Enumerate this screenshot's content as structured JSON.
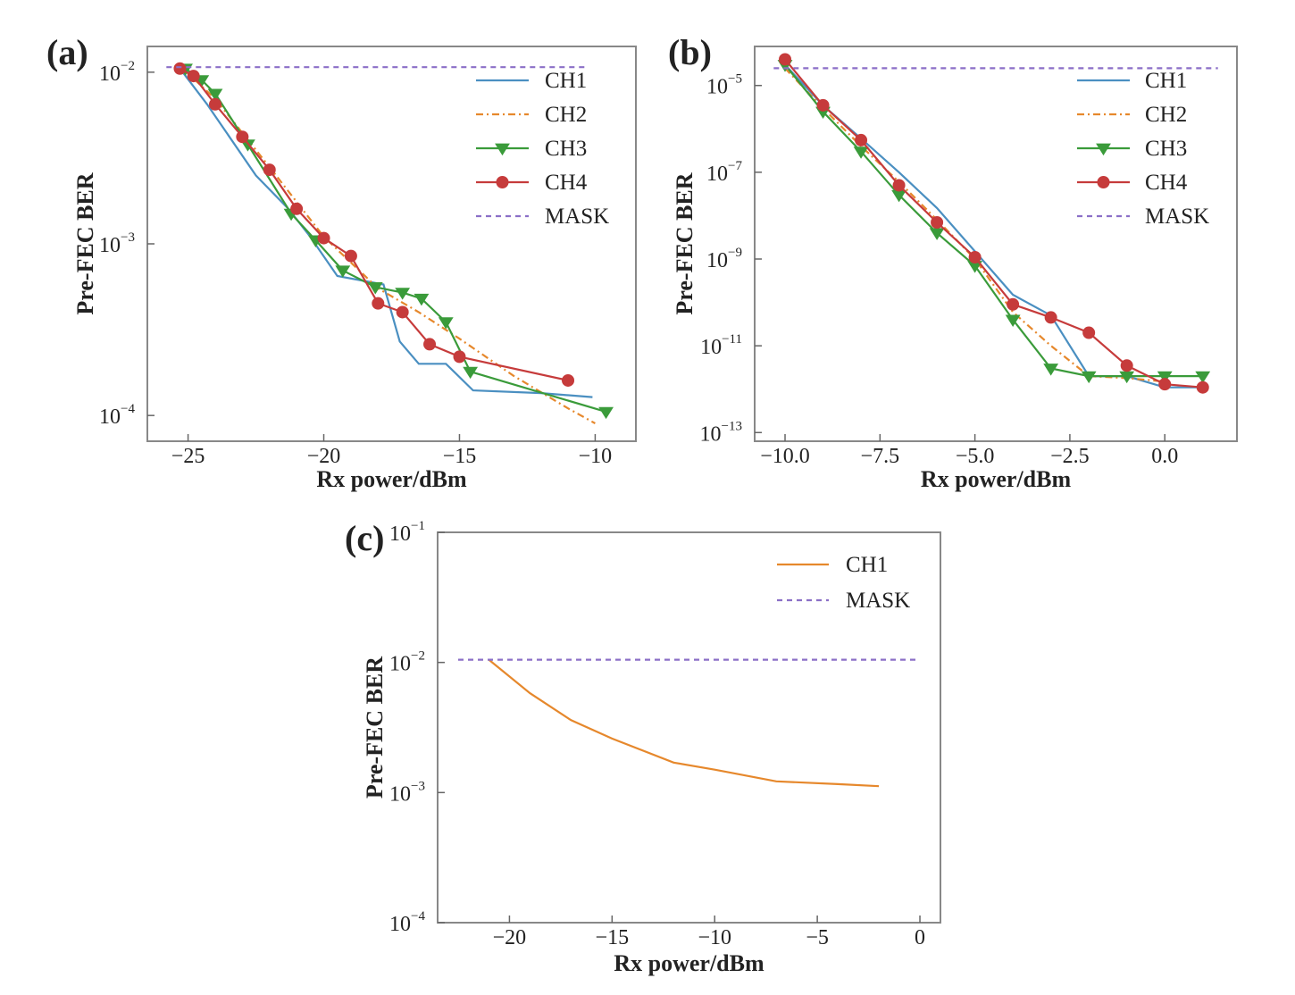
{
  "chart_data": [
    {
      "panel_label": "(a)",
      "type": "line",
      "xlabel": "Rx power/dBm",
      "ylabel": "Pre-FEC BER",
      "xlim": [
        -26.5,
        -8.5
      ],
      "ylim_log10": [
        -4.15,
        -1.85
      ],
      "y_scale": "log",
      "xticks": [
        -25,
        -20,
        -15,
        -10
      ],
      "xtick_labels": [
        "−25",
        "−20",
        "−15",
        "−10"
      ],
      "yticks": [
        {
          "base": "10",
          "exp": "-2",
          "value": -2
        },
        {
          "base": "10",
          "exp": "-3",
          "value": -3
        },
        {
          "base": "10",
          "exp": "-4",
          "value": -4
        }
      ],
      "legend_position": "top-right",
      "series": [
        {
          "name": "CH1",
          "color": "#4a8fc1",
          "dash": "",
          "marker": "none",
          "x": [
            -25.3,
            -24.3,
            -22.5,
            -21.3,
            -20.5,
            -19.5,
            -17.8,
            -17.2,
            -16.5,
            -15.5,
            -14.5,
            -12,
            -10.1
          ],
          "y": [
            0.0105,
            0.0065,
            0.0025,
            0.0016,
            0.0011,
            0.00065,
            0.00058,
            0.00027,
            0.0002,
            0.0002,
            0.00014,
            0.000135,
            0.000128
          ]
        },
        {
          "name": "CH2",
          "color": "#e6882c",
          "dash": "8,4,2,4",
          "marker": "none",
          "x": [
            -25.2,
            -24,
            -22,
            -20,
            -18,
            -16.5,
            -15,
            -13,
            -11,
            -10
          ],
          "y": [
            0.0105,
            0.007,
            0.0028,
            0.0011,
            0.00055,
            0.0004,
            0.00028,
            0.00017,
            0.00011,
            9e-05
          ]
        },
        {
          "name": "CH3",
          "color": "#3a9b3a",
          "dash": "",
          "marker": "triangle",
          "x": [
            -25.1,
            -24.5,
            -24,
            -22.8,
            -21.2,
            -20.3,
            -19.3,
            -18.1,
            -17.1,
            -16.4,
            -15.5,
            -14.6,
            -9.6
          ],
          "y": [
            0.0105,
            0.009,
            0.0075,
            0.0038,
            0.0015,
            0.00105,
            0.0007,
            0.00056,
            0.00052,
            0.00048,
            0.00035,
            0.00018,
            0.000105
          ]
        },
        {
          "name": "CH4",
          "color": "#c63b3b",
          "dash": "",
          "marker": "circle",
          "x": [
            -25.3,
            -24.8,
            -24,
            -23,
            -22,
            -21,
            -20,
            -19,
            -18,
            -17.1,
            -16.1,
            -15,
            -11
          ],
          "y": [
            0.0105,
            0.0095,
            0.0065,
            0.0042,
            0.0027,
            0.0016,
            0.00108,
            0.00085,
            0.00045,
            0.0004,
            0.00026,
            0.00022,
            0.00016
          ]
        },
        {
          "name": "MASK",
          "color": "#8b6fc7",
          "dash": "6,5",
          "marker": "none",
          "x": [
            -25.8,
            -10.3
          ],
          "y": [
            0.0107,
            0.0107
          ]
        }
      ]
    },
    {
      "panel_label": "(b)",
      "type": "line",
      "xlabel": "Rx power/dBm",
      "ylabel": "Pre-FEC BER",
      "xlim": [
        -10.8,
        1.9
      ],
      "ylim_log10": [
        -13.2,
        -4.1
      ],
      "y_scale": "log",
      "xticks": [
        -10,
        -7.5,
        -5,
        -2.5,
        0
      ],
      "xtick_labels": [
        "−10.0",
        "−7.5",
        "−5.0",
        "−2.5",
        "0.0"
      ],
      "yticks": [
        {
          "base": "10",
          "exp": "-5",
          "value": -5
        },
        {
          "base": "10",
          "exp": "-7",
          "value": -7
        },
        {
          "base": "10",
          "exp": "-9",
          "value": -9
        },
        {
          "base": "10",
          "exp": "-11",
          "value": -11
        },
        {
          "base": "10",
          "exp": "-13",
          "value": -13
        }
      ],
      "legend_position": "top-right",
      "series": [
        {
          "name": "CH1",
          "color": "#4a8fc1",
          "dash": "",
          "marker": "none",
          "x": [
            -10,
            -9,
            -8,
            -7,
            -6,
            -5,
            -4,
            -3,
            -2,
            -1,
            0,
            1
          ],
          "y": [
            3e-05,
            3.5e-06,
            6e-07,
            1e-07,
            1.5e-08,
            1.5e-09,
            1.5e-10,
            5e-11,
            2e-12,
            2e-12,
            1.1e-12,
            1.1e-12
          ]
        },
        {
          "name": "CH2",
          "color": "#e6882c",
          "dash": "8,4,2,4",
          "marker": "none",
          "x": [
            -10,
            -9,
            -8,
            -7,
            -6,
            -5,
            -4,
            -3,
            -2,
            -1,
            0
          ],
          "y": [
            2.5e-05,
            3e-06,
            4e-07,
            6e-08,
            8e-09,
            1e-09,
            6e-11,
            1e-11,
            2e-12,
            1.8e-12,
            1.5e-12
          ]
        },
        {
          "name": "CH3",
          "color": "#3a9b3a",
          "dash": "",
          "marker": "triangle",
          "x": [
            -10,
            -9,
            -8,
            -7,
            -6,
            -5,
            -4,
            -3,
            -2,
            -1,
            0,
            1
          ],
          "y": [
            3e-05,
            2.5e-06,
            3e-07,
            3e-08,
            4e-09,
            7e-10,
            4e-11,
            3e-12,
            2e-12,
            2e-12,
            2e-12,
            2e-12
          ]
        },
        {
          "name": "CH4",
          "color": "#c63b3b",
          "dash": "",
          "marker": "circle",
          "x": [
            -10,
            -9,
            -8,
            -7,
            -6,
            -5,
            -4,
            -3,
            -2,
            -1,
            0,
            1
          ],
          "y": [
            4e-05,
            3.5e-06,
            5.5e-07,
            5e-08,
            7e-09,
            1.1e-09,
            9e-11,
            4.5e-11,
            2e-11,
            3.5e-12,
            1.3e-12,
            1.1e-12
          ]
        },
        {
          "name": "MASK",
          "color": "#8b6fc7",
          "dash": "6,5",
          "marker": "none",
          "x": [
            -10.3,
            1.4
          ],
          "y": [
            2.5e-05,
            2.5e-05
          ]
        }
      ]
    },
    {
      "panel_label": "(c)",
      "type": "line",
      "xlabel": "Rx power/dBm",
      "ylabel": "Pre-FEC BER",
      "xlim": [
        -23.5,
        1
      ],
      "ylim_log10": [
        -4,
        -1
      ],
      "y_scale": "log",
      "xticks": [
        -20,
        -15,
        -10,
        -5,
        0
      ],
      "xtick_labels": [
        "−20",
        "−15",
        "−10",
        "−5",
        "0"
      ],
      "yticks": [
        {
          "base": "10",
          "exp": "-1",
          "value": -1
        },
        {
          "base": "10",
          "exp": "-2",
          "value": -2
        },
        {
          "base": "10",
          "exp": "-3",
          "value": -3
        },
        {
          "base": "10",
          "exp": "-4",
          "value": -4
        }
      ],
      "legend_position": "top-right",
      "series": [
        {
          "name": "CH1",
          "color": "#e6882c",
          "dash": "",
          "marker": "none",
          "x": [
            -21,
            -19,
            -17,
            -15,
            -12,
            -10,
            -7,
            -4,
            -2
          ],
          "y": [
            0.0105,
            0.0058,
            0.0036,
            0.0026,
            0.0017,
            0.0015,
            0.00122,
            0.00116,
            0.00112
          ]
        },
        {
          "name": "MASK",
          "color": "#8b6fc7",
          "dash": "6,5",
          "marker": "none",
          "x": [
            -22.5,
            0
          ],
          "y": [
            0.0105,
            0.0105
          ]
        }
      ]
    }
  ]
}
